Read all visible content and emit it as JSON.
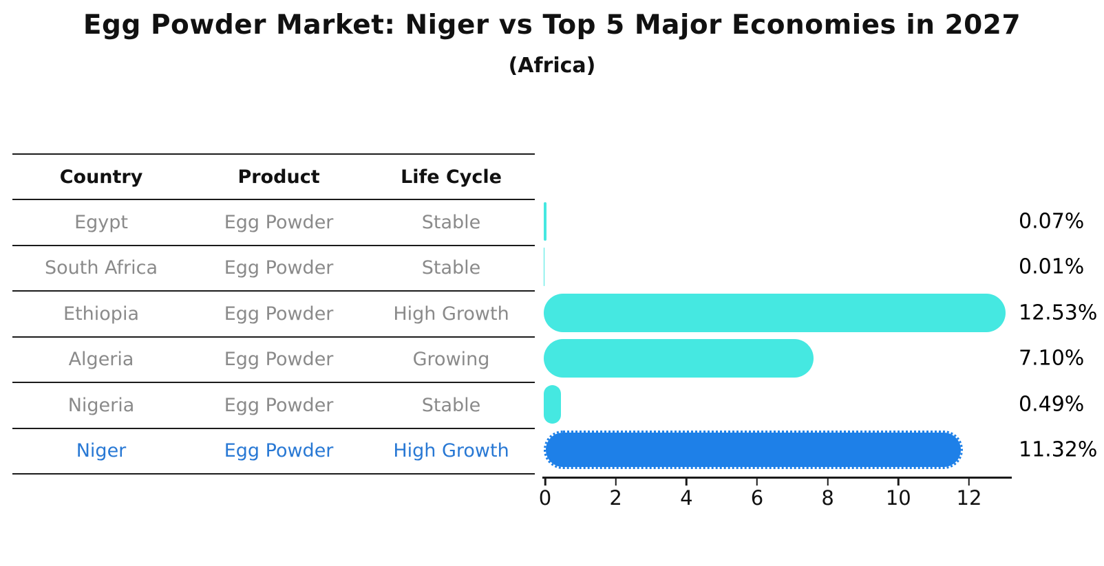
{
  "chart_data": {
    "type": "bar",
    "orientation": "horizontal",
    "title": "Egg Powder Market: Niger vs Top 5 Major Economies in 2027",
    "subtitle": "(Africa)",
    "categories": [
      "Egypt",
      "South Africa",
      "Ethiopia",
      "Algeria",
      "Nigeria",
      "Niger"
    ],
    "values": [
      0.07,
      0.01,
      12.53,
      7.1,
      0.49,
      11.32
    ],
    "value_labels": [
      "0.07%",
      "0.01%",
      "12.53%",
      "7.10%",
      "0.49%",
      "11.32%"
    ],
    "x_ticks": [
      0,
      2,
      4,
      6,
      8,
      10,
      12
    ],
    "x_tick_labels": [
      "0",
      "2",
      "4",
      "6",
      "8",
      "10",
      "12"
    ],
    "xlim": [
      0,
      13.2
    ],
    "grid": false,
    "legend": false,
    "bar_color": "#45e8e1",
    "highlight_color": "#1e80e8",
    "highlight_index": 5
  },
  "table": {
    "headers": [
      "Country",
      "Product",
      "Life Cycle"
    ],
    "rows": [
      {
        "country": "Egypt",
        "product": "Egg Powder",
        "life_cycle": "Stable",
        "highlight": false
      },
      {
        "country": "South Africa",
        "product": "Egg Powder",
        "life_cycle": "Stable",
        "highlight": false
      },
      {
        "country": "Ethiopia",
        "product": "Egg Powder",
        "life_cycle": "High Growth",
        "highlight": false
      },
      {
        "country": "Algeria",
        "product": "Egg Powder",
        "life_cycle": "Growing",
        "highlight": false
      },
      {
        "country": "Nigeria",
        "product": "Egg Powder",
        "life_cycle": "Stable",
        "highlight": false
      },
      {
        "country": "Niger",
        "product": "Egg Powder",
        "life_cycle": "High Growth",
        "highlight": true
      }
    ]
  },
  "colors": {
    "bar": "#45e8e1",
    "highlight_bar": "#1e80e8",
    "highlight_text": "#2878d4",
    "table_text": "#8a8a8a",
    "axis": "#1a1a1a"
  }
}
